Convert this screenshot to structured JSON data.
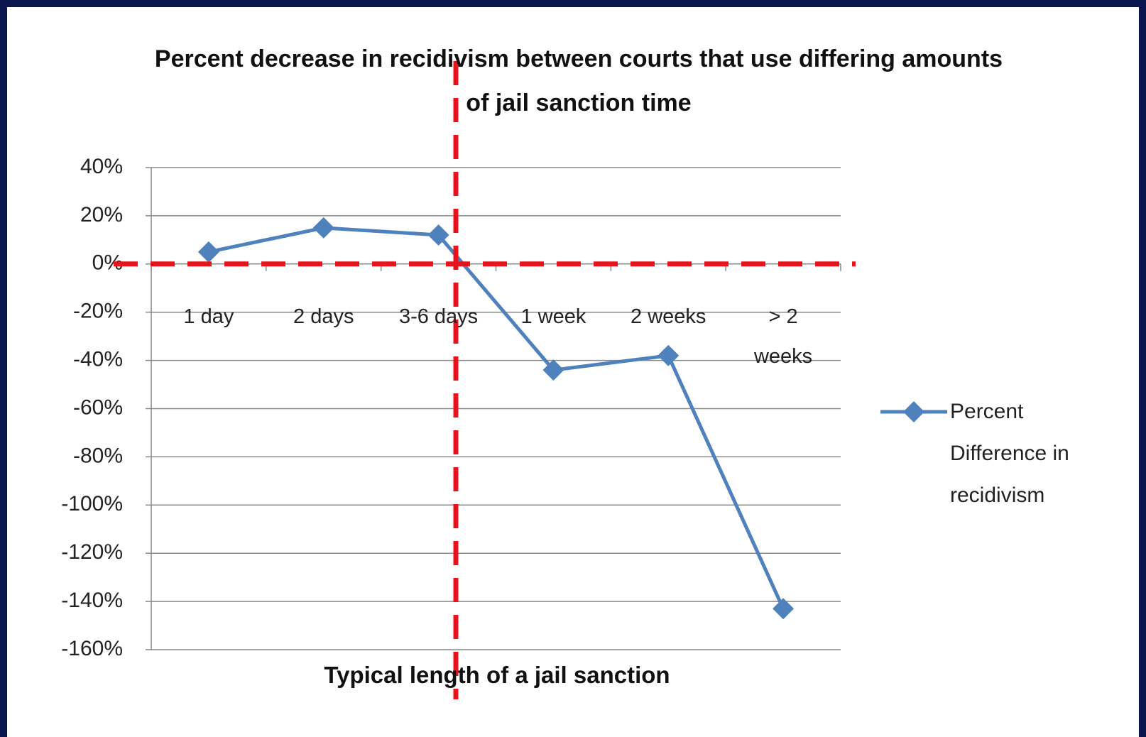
{
  "chart_data": {
    "type": "line",
    "title": "Percent decrease in recidivism between courts that use differing amounts of jail sanction time",
    "x_label": "Typical length of a jail sanction",
    "categories": [
      "1 day",
      "2 days",
      "3-6 days",
      "1 week",
      "2 weeks",
      "> 2 weeks"
    ],
    "series": [
      {
        "name": "Percent Difference in recidivism",
        "color": "#4f81bd",
        "values": [
          5,
          15,
          12,
          -44,
          -38,
          -143
        ]
      }
    ],
    "ylim": [
      -160,
      40
    ],
    "yticks": [
      {
        "value": -160,
        "label": "-160%"
      },
      {
        "value": -140,
        "label": "-140%"
      },
      {
        "value": -120,
        "label": "-120%"
      },
      {
        "value": -100,
        "label": "-100%"
      },
      {
        "value": -80,
        "label": "-80%"
      },
      {
        "value": -60,
        "label": "-60%"
      },
      {
        "value": -40,
        "label": "-40%"
      },
      {
        "value": -20,
        "label": "-20%"
      },
      {
        "value": 0,
        "label": "0%"
      },
      {
        "value": 20,
        "label": "20%"
      },
      {
        "value": 40,
        "label": "40%"
      }
    ],
    "grid": true,
    "legend": "right"
  }
}
